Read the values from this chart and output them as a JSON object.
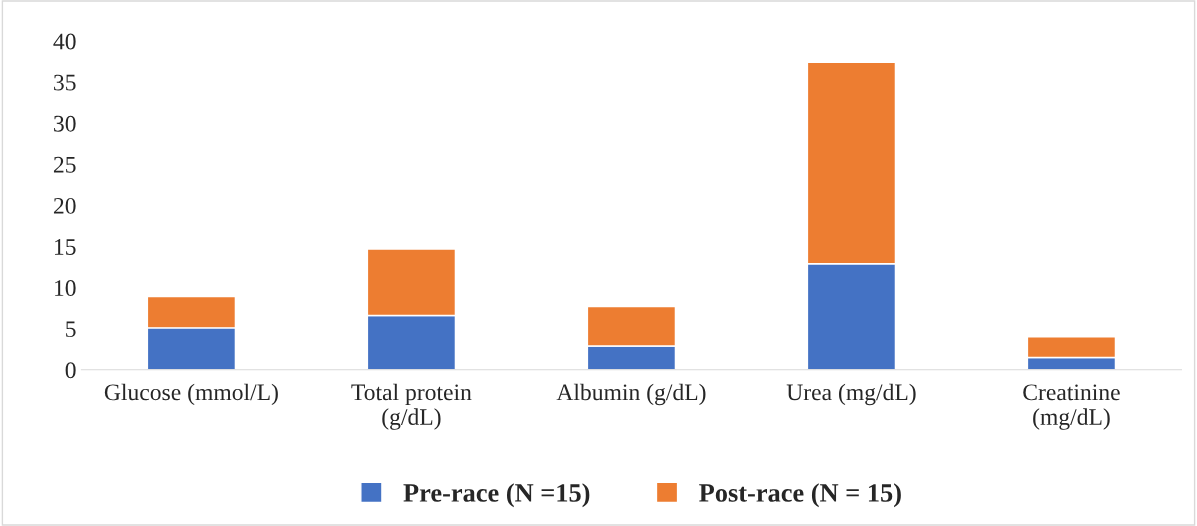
{
  "chart_data": {
    "type": "bar",
    "stacked": true,
    "categories": [
      "Glucose (mmol/L)",
      "Total protein\n(g/dL)",
      "Albumin (g/dL)",
      "Urea (mg/dL)",
      "Creatinine\n(mg/dL)"
    ],
    "series": [
      {
        "name": "Pre-race (N =15)",
        "color": "#4472c4",
        "values": [
          5.1,
          6.6,
          2.9,
          12.9,
          1.5
        ]
      },
      {
        "name": "Post-race (N = 15)",
        "color": "#ed7d31",
        "values": [
          3.8,
          8.1,
          4.8,
          24.5,
          2.5
        ]
      }
    ],
    "ylim": [
      0,
      40
    ],
    "yticks": [
      0,
      5,
      10,
      15,
      20,
      25,
      30,
      35,
      40
    ],
    "grid": false,
    "legend": "bottom"
  }
}
